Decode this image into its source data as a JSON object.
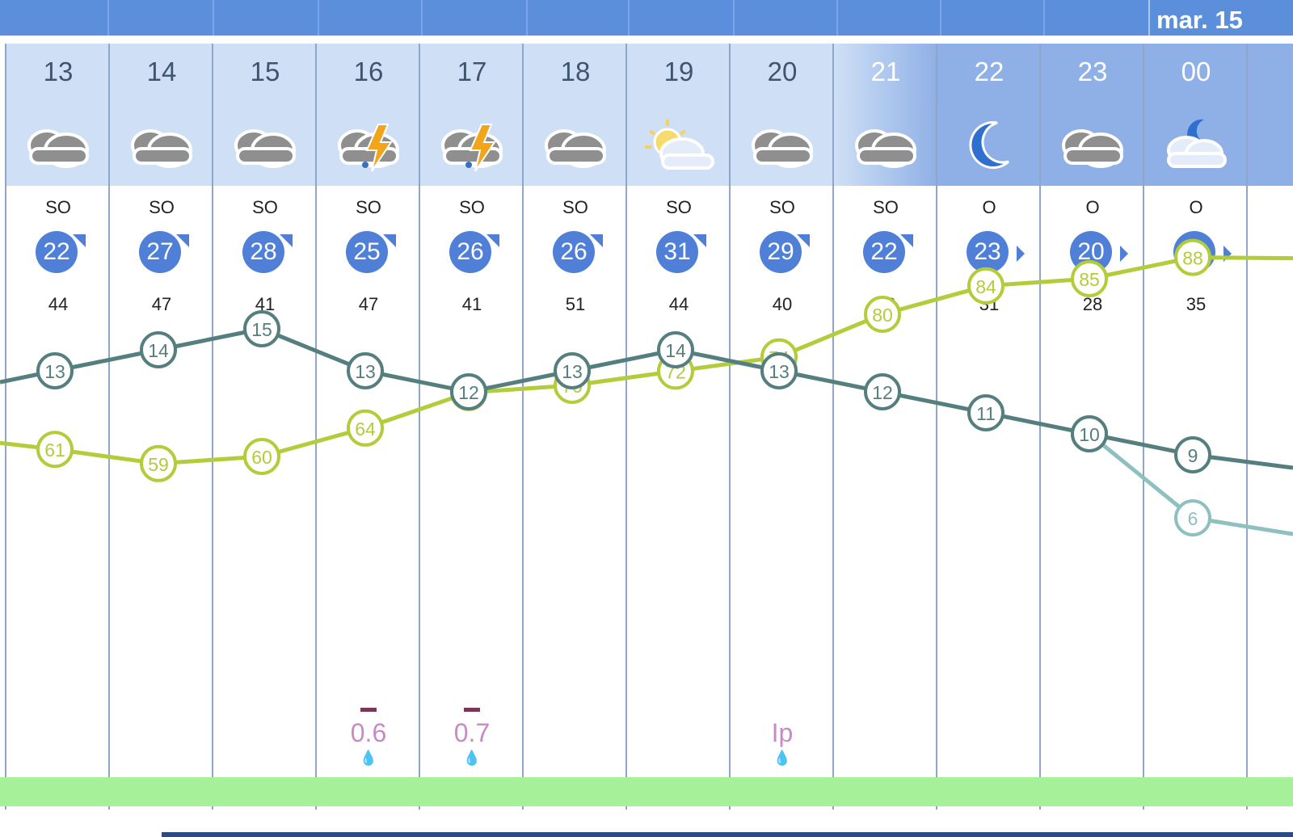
{
  "header": {
    "date_label": "mar. 15"
  },
  "hours": [
    {
      "hour": "13",
      "icon": "cloud-icon",
      "wind_dir": "SO",
      "wind_speed": "22",
      "wind_arrow": "northeast",
      "gust": "44",
      "precip": null
    },
    {
      "hour": "14",
      "icon": "cloud-icon",
      "wind_dir": "SO",
      "wind_speed": "27",
      "wind_arrow": "northeast",
      "gust": "47",
      "precip": null
    },
    {
      "hour": "15",
      "icon": "cloud-icon",
      "wind_dir": "SO",
      "wind_speed": "28",
      "wind_arrow": "northeast",
      "gust": "41",
      "precip": null
    },
    {
      "hour": "16",
      "icon": "thunderstorm-icon",
      "wind_dir": "SO",
      "wind_speed": "25",
      "wind_arrow": "northeast",
      "gust": "47",
      "precip": "0.6"
    },
    {
      "hour": "17",
      "icon": "thunderstorm-icon",
      "wind_dir": "SO",
      "wind_speed": "26",
      "wind_arrow": "northeast",
      "gust": "41",
      "precip": "0.7"
    },
    {
      "hour": "18",
      "icon": "cloud-icon",
      "wind_dir": "SO",
      "wind_speed": "26",
      "wind_arrow": "northeast",
      "gust": "51",
      "precip": null
    },
    {
      "hour": "19",
      "icon": "sun-cloud-icon",
      "wind_dir": "SO",
      "wind_speed": "31",
      "wind_arrow": "northeast",
      "gust": "44",
      "precip": null
    },
    {
      "hour": "20",
      "icon": "cloud-icon",
      "wind_dir": "SO",
      "wind_speed": "29",
      "wind_arrow": "northeast",
      "gust": "40",
      "precip": "Ip"
    },
    {
      "hour": "21",
      "icon": "cloud-icon",
      "wind_dir": "SO",
      "wind_speed": "22",
      "wind_arrow": "northeast",
      "gust": "36",
      "precip": null
    },
    {
      "hour": "22",
      "icon": "moon-icon",
      "wind_dir": "O",
      "wind_speed": "23",
      "wind_arrow": "east",
      "gust": "31",
      "precip": null
    },
    {
      "hour": "23",
      "icon": "cloud-icon",
      "wind_dir": "O",
      "wind_speed": "20",
      "wind_arrow": "east",
      "gust": "28",
      "precip": null
    },
    {
      "hour": "00",
      "icon": "moon-cloud-icon",
      "wind_dir": "O",
      "wind_speed": "18",
      "wind_arrow": "east",
      "gust": "35",
      "precip": null
    }
  ],
  "colors": {
    "header_bar": "#5b8fdc",
    "day_column": "#cfe0f6",
    "night_column": "#8fb0e6",
    "temperature_line": "#557e7e",
    "feels_like_line": "#8fc0c0",
    "humidity_line": "#b2cc3a",
    "wind_badge": "#4f7fd6",
    "green_strip": "#a7f09a"
  },
  "chart_data": {
    "type": "line",
    "x": [
      "13",
      "14",
      "15",
      "16",
      "17",
      "18",
      "19",
      "20",
      "21",
      "22",
      "23",
      "00"
    ],
    "series": [
      {
        "values": [
          13,
          14,
          15,
          13,
          12,
          13,
          14,
          13,
          12,
          11,
          10,
          9
        ]
      },
      {
        "values": [
          null,
          null,
          null,
          null,
          null,
          null,
          null,
          null,
          null,
          null,
          10,
          6
        ]
      },
      {
        "values": [
          61,
          59,
          60,
          64,
          69,
          70,
          72,
          74,
          80,
          84,
          85,
          88
        ]
      }
    ]
  }
}
